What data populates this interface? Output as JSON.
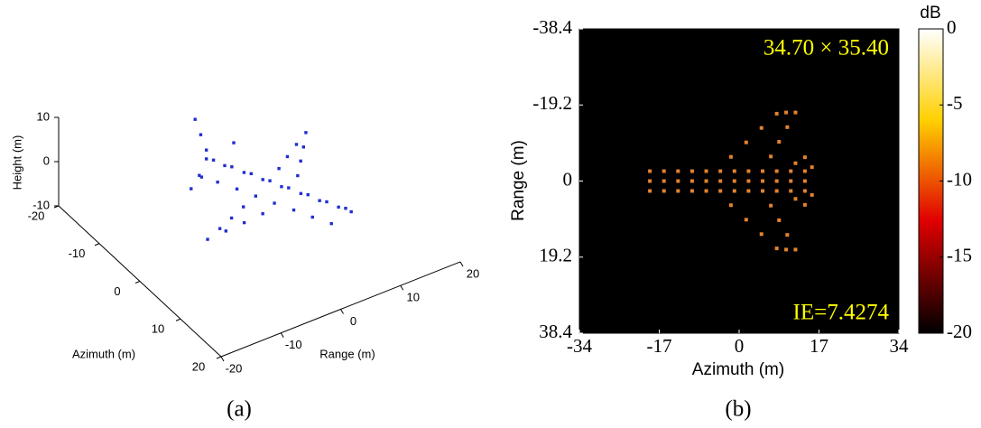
{
  "chart_data": [
    {
      "type": "scatter3d",
      "caption": "(a)",
      "xlabel": "Azimuth (m)",
      "ylabel": "Range (m)",
      "zlabel": "Height (m)",
      "xlim": [
        -20,
        20
      ],
      "xticks": [
        -20,
        -10,
        0,
        10,
        20
      ],
      "ylim": [
        -20,
        20
      ],
      "yticks": [
        -20,
        -10,
        0,
        10,
        20
      ],
      "zlim": [
        -10,
        10
      ],
      "zticks": [
        -10,
        0,
        10
      ],
      "series": [
        {
          "color": "#1f2fd0",
          "x": [
            -8.8,
            -6.2,
            -3.5,
            -0.8,
            1.9,
            4.6,
            7.3,
            9.9,
            11.7,
            -9.7,
            -7.1,
            -4.4,
            -1.7,
            1.0,
            3.7,
            6.4,
            9.0,
            -7.9,
            -5.3,
            -2.6,
            0.1,
            2.8,
            5.5,
            8.2,
            10.8,
            -0.6,
            -3.1,
            -5.5,
            -8.0,
            -3.3,
            -4.9,
            -6.5,
            3.9,
            4.2,
            4.4,
            4.6,
            1.2,
            2.4,
            3.5,
            -10.6,
            -5.2,
            -6.6,
            -8.8,
            -9.6,
            -10.4
          ],
          "y": [
            -2.9,
            -1.6,
            -0.2,
            1.1,
            2.4,
            3.8,
            5.1,
            6.5,
            7.4,
            -1.1,
            0.2,
            1.6,
            2.9,
            4.2,
            5.6,
            6.9,
            8.3,
            -4.7,
            -3.4,
            -2.0,
            -0.7,
            0.6,
            2.0,
            3.3,
            4.7,
            6.8,
            9.0,
            11.1,
            13.2,
            5.5,
            8.0,
            10.6,
            -2.1,
            -5.4,
            -8.6,
            -11.8,
            -3.5,
            -6.3,
            -9.0,
            2.9,
            -7.9,
            -5.2,
            -2.9,
            -3.3,
            -3.7
          ],
          "z": [
            1,
            1,
            1,
            1,
            1,
            1,
            1,
            1,
            1,
            -1,
            -1,
            -1,
            -1,
            -1,
            -1,
            -1,
            -1,
            -1,
            -1,
            -1,
            -1,
            -1,
            -1,
            -1,
            -1,
            -1,
            -1,
            -1,
            -1,
            -1,
            -1,
            -1,
            -1,
            -1,
            -1,
            -1,
            -1,
            -1,
            -1,
            0,
            0,
            0,
            3,
            6,
            9
          ]
        }
      ]
    },
    {
      "type": "image",
      "caption": "(b)",
      "xlabel": "Azimuth (m)",
      "ylabel": "Range (m)",
      "xlim": [
        -34,
        34
      ],
      "xticks": [
        -34,
        -17,
        0,
        17,
        34
      ],
      "ylim": [
        38.4,
        -38.4
      ],
      "yticks": [
        -38.4,
        -19.2,
        0,
        19.2,
        38.4
      ],
      "annotations": [
        "34.70 × 35.40",
        "IE=7.4274"
      ],
      "colorbar": {
        "label": "dB",
        "lim": [
          -20,
          0
        ],
        "ticks": [
          0,
          -5,
          -10,
          -15,
          -20
        ]
      },
      "series": [
        {
          "color": "#e2822e",
          "x": [
            -19,
            -16,
            -13,
            -10,
            -7,
            -4,
            -1,
            2,
            5,
            8,
            11,
            14,
            -19,
            -16,
            -13,
            -10,
            -7,
            -4,
            -1,
            2,
            5,
            8,
            11,
            14,
            -19,
            -16,
            -13,
            -10,
            -7,
            -4,
            -1,
            2,
            5,
            8,
            11,
            14,
            -1.75,
            1.5,
            4.75,
            8,
            10,
            12,
            10.25,
            8.5,
            6.75,
            -1.75,
            1.5,
            4.75,
            8,
            10,
            12,
            10.25,
            8.5,
            6.75,
            12,
            14,
            15.5,
            12,
            14,
            15.5
          ],
          "y": [
            -2.5,
            -2.5,
            -2.5,
            -2.5,
            -2.5,
            -2.5,
            -2.5,
            -2.5,
            -2.5,
            -2.5,
            -2.5,
            -2.5,
            0,
            0,
            0,
            0,
            0,
            0,
            0,
            0,
            0,
            0,
            0,
            0,
            2.5,
            2.5,
            2.5,
            2.5,
            2.5,
            2.5,
            2.5,
            2.5,
            2.5,
            2.5,
            2.5,
            2.5,
            -6.1,
            -9.75,
            -13.4,
            -17,
            -17.3,
            -17.3,
            -13.6,
            -9.9,
            -6.2,
            6.1,
            9.75,
            13.4,
            17,
            17.3,
            17.3,
            13.6,
            9.9,
            6.2,
            -4.5,
            -6,
            -3.5,
            4.5,
            6,
            3.5
          ]
        }
      ]
    }
  ]
}
